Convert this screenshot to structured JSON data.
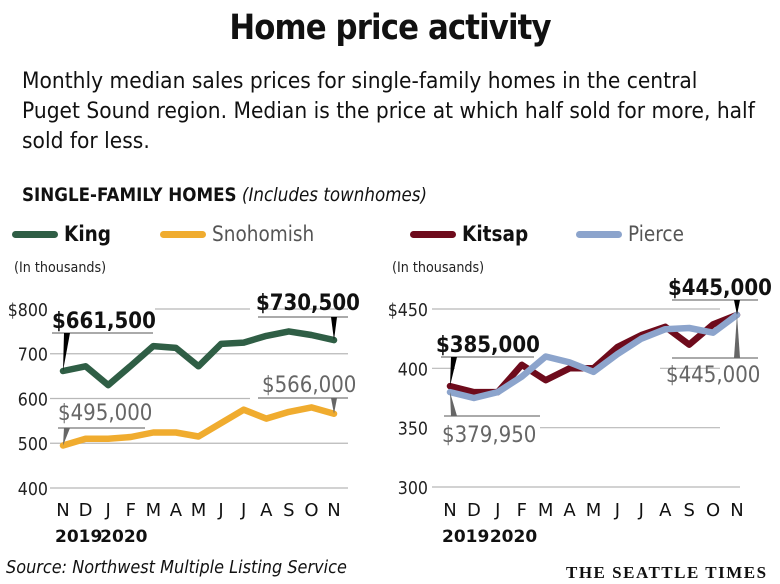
{
  "header": {
    "title": "Home price activity",
    "subtitle": "Monthly median sales prices for single-family homes in the central Puget Sound region. Median is the price at which half sold for more, half sold for less."
  },
  "section": {
    "label_bold": "SINGLE-FAMILY HOMES",
    "label_italic": "(Includes townhomes)"
  },
  "legend": [
    {
      "name": "King",
      "color": "#2f5e45",
      "style": "bold"
    },
    {
      "name": "Snohomish",
      "color": "#f0ac2f",
      "style": "light"
    },
    {
      "name": "Kitsap",
      "color": "#6e0b1c",
      "style": "bold"
    },
    {
      "name": "Pierce",
      "color": "#8ca4cc",
      "style": "light"
    }
  ],
  "footer": {
    "source": "Source: Northwest Multiple Listing Service",
    "brand": "THE SEATTLE TIMES"
  },
  "chart_data": [
    {
      "type": "line",
      "title": "King and Snohomish",
      "ylabel": "(In thousands)",
      "ylim": [
        400,
        800
      ],
      "yticks": [
        800,
        700,
        600,
        500,
        400
      ],
      "ytick_labels": [
        "$800",
        "700",
        "600",
        "500",
        "400"
      ],
      "grid": true,
      "categories": [
        "N",
        "D",
        "J",
        "F",
        "M",
        "A",
        "M",
        "J",
        "J",
        "A",
        "S",
        "O",
        "N"
      ],
      "year_labels": [
        {
          "label": "2019",
          "index": 0
        },
        {
          "label": "2020",
          "index": 2
        }
      ],
      "series": [
        {
          "name": "King",
          "color": "#2f5e45",
          "values": [
            661.5,
            672,
            630,
            673,
            717,
            713,
            672,
            722,
            725,
            740,
            750,
            742,
            730.5
          ]
        },
        {
          "name": "Snohomish",
          "color": "#f0ac2f",
          "values": [
            495,
            510,
            510,
            514,
            524,
            524,
            515,
            545,
            575,
            555,
            570,
            580,
            566
          ]
        }
      ],
      "annotations": [
        {
          "text": "$661,500",
          "series": "King",
          "index": 0,
          "style": "bold",
          "position": "above"
        },
        {
          "text": "$730,500",
          "series": "King",
          "index": 12,
          "style": "bold",
          "position": "above"
        },
        {
          "text": "$495,000",
          "series": "Snohomish",
          "index": 0,
          "style": "light",
          "position": "above"
        },
        {
          "text": "$566,000",
          "series": "Snohomish",
          "index": 12,
          "style": "light",
          "position": "above"
        }
      ]
    },
    {
      "type": "line",
      "title": "Kitsap and Pierce",
      "ylabel": "(In thousands)",
      "ylim": [
        300,
        450
      ],
      "yticks": [
        450,
        400,
        350,
        300
      ],
      "ytick_labels": [
        "$450",
        "400",
        "350",
        "300"
      ],
      "grid": true,
      "categories": [
        "N",
        "D",
        "J",
        "F",
        "M",
        "A",
        "M",
        "J",
        "J",
        "A",
        "S",
        "O",
        "N"
      ],
      "year_labels": [
        {
          "label": "2019",
          "index": 0
        },
        {
          "label": "2020",
          "index": 2
        }
      ],
      "series": [
        {
          "name": "Kitsap",
          "color": "#6e0b1c",
          "values": [
            385,
            380,
            380,
            403,
            390,
            400,
            400,
            418,
            428,
            435,
            420,
            437,
            445
          ]
        },
        {
          "name": "Pierce",
          "color": "#8ca4cc",
          "values": [
            379.95,
            375,
            380,
            393,
            410,
            405,
            397,
            412,
            425,
            433,
            434,
            430,
            445
          ]
        }
      ],
      "annotations": [
        {
          "text": "$385,000",
          "series": "Kitsap",
          "index": 0,
          "style": "bold",
          "position": "above"
        },
        {
          "text": "$445,000",
          "series": "Kitsap",
          "index": 12,
          "style": "bold",
          "position": "above"
        },
        {
          "text": "$379,950",
          "series": "Pierce",
          "index": 0,
          "style": "light",
          "position": "below"
        },
        {
          "text": "$445,000",
          "series": "Pierce",
          "index": 12,
          "style": "light",
          "position": "below"
        }
      ]
    }
  ]
}
